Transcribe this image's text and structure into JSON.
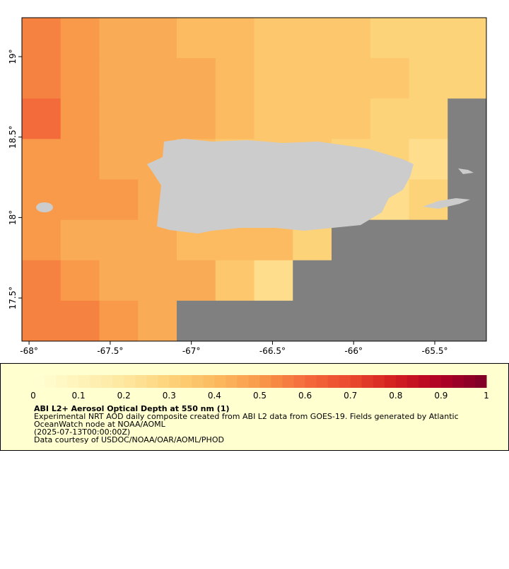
{
  "chart_data": {
    "type": "raster",
    "xlim": [
      -68.044,
      -65.182
    ],
    "ylim": [
      17.232,
      19.242
    ],
    "xticks": [
      {
        "value": -68,
        "label": "-68°"
      },
      {
        "value": -67.5,
        "label": "-67.5°"
      },
      {
        "value": -67,
        "label": "-67°"
      },
      {
        "value": -66.5,
        "label": "-66.5°"
      },
      {
        "value": -66,
        "label": "-66°"
      },
      {
        "value": -65.5,
        "label": "-65.5°"
      }
    ],
    "yticks": [
      {
        "value": 19,
        "label": "19°"
      },
      {
        "value": 18.5,
        "label": "18.5°"
      },
      {
        "value": 18,
        "label": "18°"
      },
      {
        "value": 17.5,
        "label": "17.5°"
      }
    ],
    "missing_color": "#808080",
    "land_color": "#cccccc",
    "colorscale": [
      [
        0,
        "#ffffd4"
      ],
      [
        0.2,
        "#fee8a0"
      ],
      [
        0.3,
        "#fdd37a"
      ],
      [
        0.4,
        "#fcbb60"
      ],
      [
        0.5,
        "#f89a4a"
      ],
      [
        0.6,
        "#f46b3b"
      ],
      [
        0.7,
        "#ea4a2e"
      ],
      [
        0.8,
        "#d21e20"
      ],
      [
        0.9,
        "#b00026"
      ],
      [
        1,
        "#7d0026"
      ]
    ],
    "grid": [
      [
        0.55,
        0.5,
        0.45,
        0.45,
        0.4,
        0.4,
        0.35,
        0.35,
        0.35,
        0.3,
        0.3,
        0.3
      ],
      [
        0.55,
        0.5,
        0.45,
        0.45,
        0.45,
        0.4,
        0.35,
        0.35,
        0.35,
        0.35,
        0.3,
        0.3
      ],
      [
        0.6,
        0.5,
        0.45,
        0.45,
        0.45,
        0.4,
        0.35,
        0.35,
        0.35,
        0.3,
        0.3,
        null
      ],
      [
        0.5,
        0.5,
        0.45,
        0.45,
        0.4,
        0.35,
        0.35,
        0.35,
        0.3,
        0.3,
        0.25,
        null
      ],
      [
        0.5,
        0.5,
        0.5,
        0.45,
        0.4,
        0.4,
        0.4,
        0.4,
        0.3,
        0.25,
        0.3,
        null
      ],
      [
        0.5,
        0.45,
        0.45,
        0.45,
        0.4,
        0.4,
        0.4,
        0.3,
        null,
        null,
        null,
        null
      ],
      [
        0.55,
        0.5,
        0.45,
        0.45,
        0.45,
        0.35,
        0.25,
        null,
        null,
        null,
        null,
        null
      ],
      [
        0.55,
        0.55,
        0.5,
        0.45,
        null,
        null,
        null,
        null,
        null,
        null,
        null,
        null
      ]
    ],
    "colorbar": {
      "lim": [
        0,
        1
      ],
      "ticks": [
        0,
        0.1,
        0.2,
        0.3,
        0.4,
        0.5,
        0.6,
        0.7,
        0.8,
        0.9,
        1
      ]
    },
    "title": "ABI L2+ Aerosol Optical Depth at 550 nm (1)",
    "lines": [
      "Experimental NRT AOD daily composite created from ABI L2 data from GOES-19. Fields generated by Atlantic",
      "OceanWatch node at NOAA/AOML",
      "(2025-07-13T00:00:00Z)",
      "Data courtesy of USDOC/NOAA/OAR/AOML/PHOD"
    ]
  }
}
